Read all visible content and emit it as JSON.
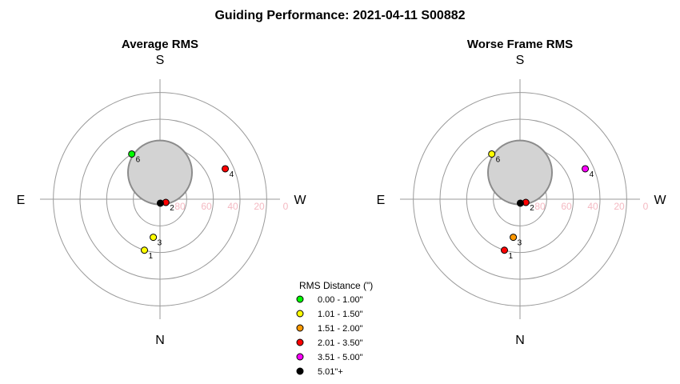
{
  "title": "Guiding Performance: 2021-04-11 S00882",
  "colors": {
    "ring": "#9a9a9a",
    "axis": "#9a9a9a",
    "moon_fill": "#d3d3d3",
    "moon_stroke": "#8c8c8c",
    "alt_label": "#f4b9c2"
  },
  "chart_data": [
    {
      "type": "scatter",
      "projection": "polar-sky",
      "title": "Average RMS",
      "directions": {
        "top": "S",
        "bottom": "N",
        "left": "E",
        "right": "W"
      },
      "altitude_rings": [
        90,
        70,
        50,
        30,
        10
      ],
      "altitude_tick_labels": [
        "80",
        "60",
        "40",
        "20",
        "0"
      ],
      "moon": {
        "azimuth_deg": 180,
        "altitude_deg": 70
      },
      "points": [
        {
          "label": "1",
          "azimuth_deg": 17,
          "altitude_deg": 50,
          "rms_class": "1.01 - 1.50\""
        },
        {
          "label": "2",
          "azimuth_deg": 299,
          "altitude_deg": 85,
          "rms_class": "2.01 - 3.50\""
        },
        {
          "label": "3",
          "azimuth_deg": 10,
          "altitude_deg": 61,
          "rms_class": "1.51 - 2.00\"",
          "display_class": "1.01 - 1.50\""
        },
        {
          "label": "",
          "azimuth_deg": 355,
          "altitude_deg": 87,
          "rms_class": "5.01\"+"
        },
        {
          "label": "4",
          "azimuth_deg": 245,
          "altitude_deg": 36,
          "rms_class": "2.01 - 3.50\""
        },
        {
          "label": "6",
          "azimuth_deg": 148,
          "altitude_deg": 50,
          "rms_class": "0.00 - 1.00\""
        }
      ]
    },
    {
      "type": "scatter",
      "projection": "polar-sky",
      "title": "Worse Frame RMS",
      "directions": {
        "top": "S",
        "bottom": "N",
        "left": "E",
        "right": "W"
      },
      "altitude_rings": [
        90,
        70,
        50,
        30,
        10
      ],
      "altitude_tick_labels": [
        "80",
        "60",
        "40",
        "20",
        "0"
      ],
      "moon": {
        "azimuth_deg": 180,
        "altitude_deg": 70
      },
      "points": [
        {
          "label": "1",
          "azimuth_deg": 17,
          "altitude_deg": 50,
          "rms_class": "2.01 - 3.50\""
        },
        {
          "label": "2",
          "azimuth_deg": 299,
          "altitude_deg": 85,
          "rms_class": "2.01 - 3.50\""
        },
        {
          "label": "3",
          "azimuth_deg": 10,
          "altitude_deg": 61,
          "rms_class": "1.51 - 2.00\""
        },
        {
          "label": "",
          "azimuth_deg": 355,
          "altitude_deg": 87,
          "rms_class": "5.01\"+"
        },
        {
          "label": "4",
          "azimuth_deg": 245,
          "altitude_deg": 36,
          "rms_class": "3.51 - 5.00\""
        },
        {
          "label": "6",
          "azimuth_deg": 148,
          "altitude_deg": 50,
          "rms_class": "1.01 - 1.50\""
        }
      ]
    }
  ],
  "legend": {
    "title": "RMS Distance (\")",
    "placement": "bottom-center",
    "items": [
      {
        "label": "0.00 - 1.00\"",
        "color": "#00ff00"
      },
      {
        "label": "1.01 - 1.50\"",
        "color": "#ffff00"
      },
      {
        "label": "1.51 - 2.00\"",
        "color": "#ff9900"
      },
      {
        "label": "2.01 - 3.50\"",
        "color": "#ff0000"
      },
      {
        "label": "3.51 - 5.00\"",
        "color": "#ff00ff"
      },
      {
        "label": "5.01\"+",
        "color": "#000000"
      }
    ]
  }
}
